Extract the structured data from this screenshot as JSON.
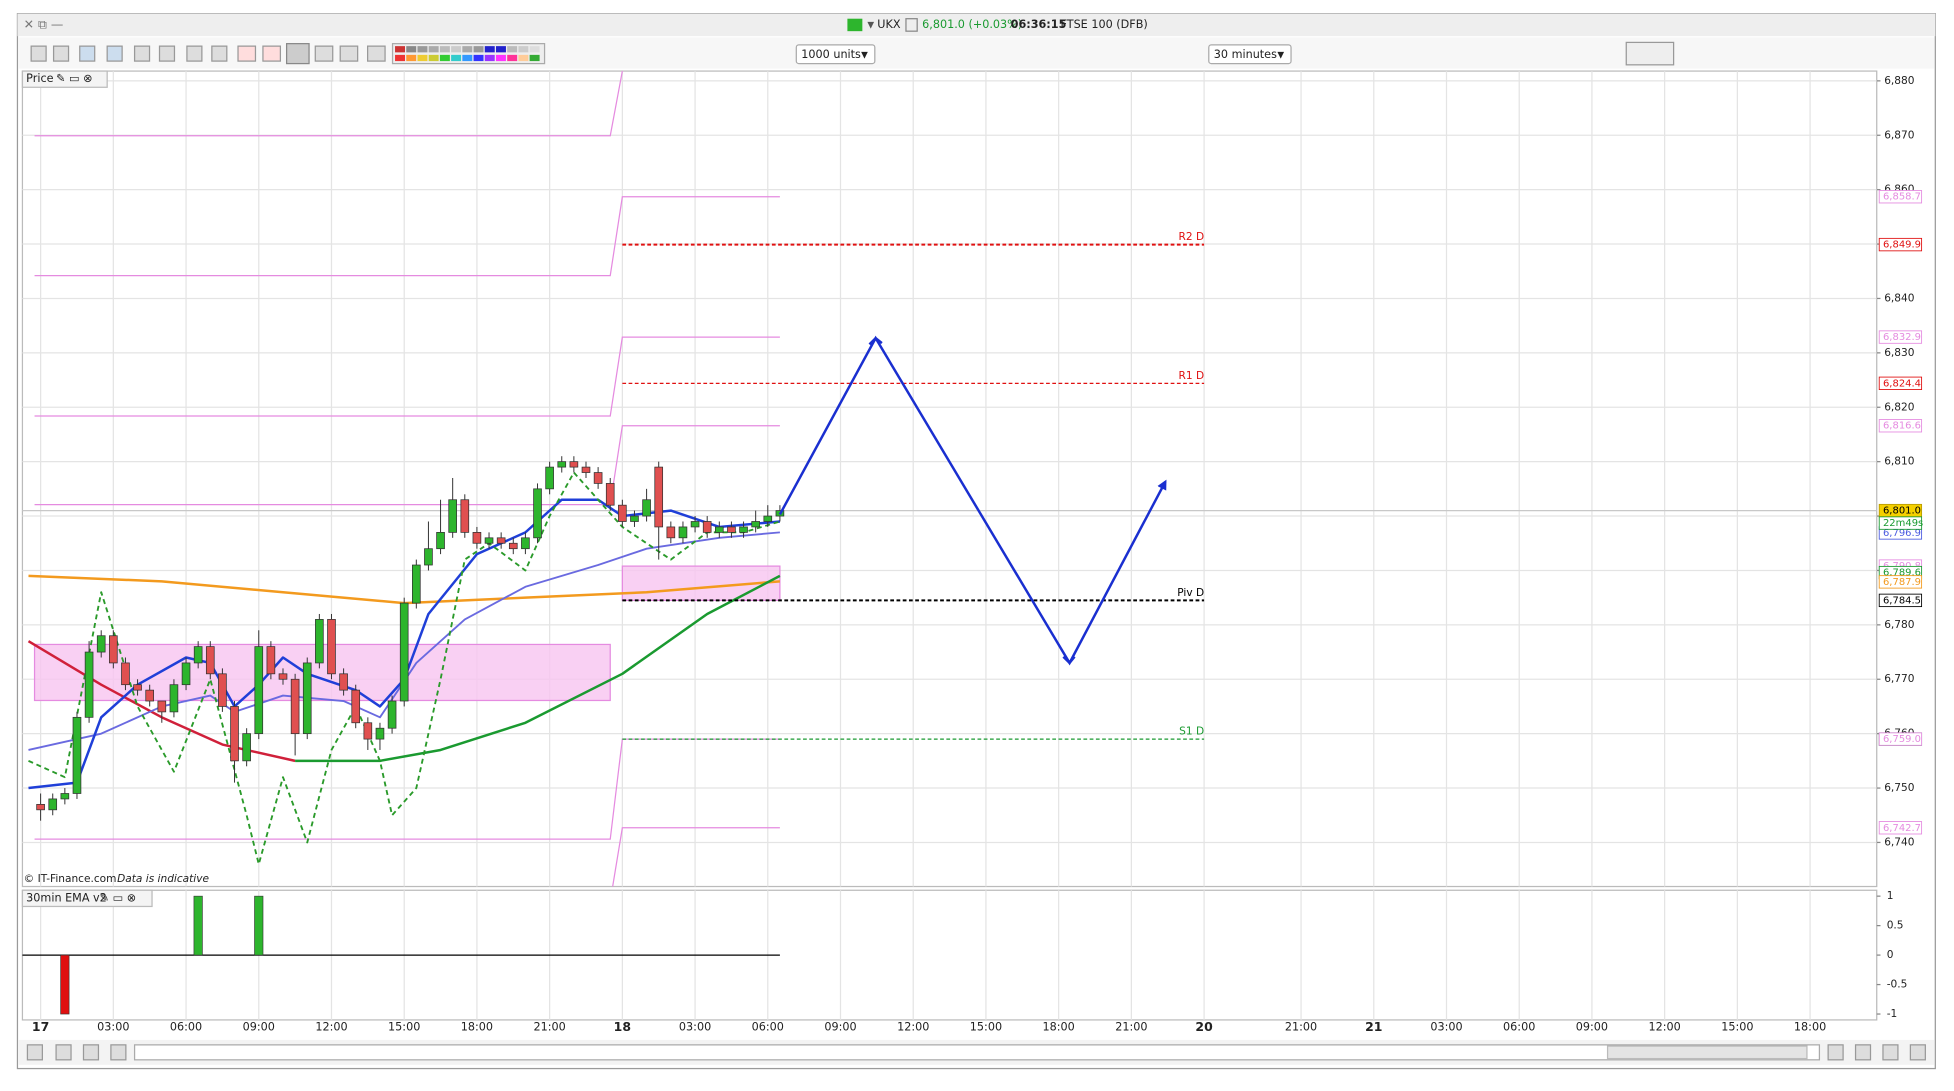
{
  "chart_data": {
    "type": "candlestick",
    "title": "UKX",
    "quote": "6,801.0 (+0.03%)",
    "clock": "06:36:15",
    "instrument": "FTSE 100 (DFB)",
    "units": "1000 units",
    "interval": "30 minutes",
    "panel_label": "Price",
    "credit": "© IT-Finance.com",
    "note": "Data is indicative",
    "xlim": [
      -1.5,
      151.5
    ],
    "ylim": [
      6731.9,
      6881.8
    ],
    "grid": true,
    "xticks": [
      {
        "value": 0,
        "label": "17"
      },
      {
        "value": 6,
        "label": "03:00"
      },
      {
        "value": 12,
        "label": "06:00"
      },
      {
        "value": 18,
        "label": "09:00"
      },
      {
        "value": 24,
        "label": "12:00"
      },
      {
        "value": 30,
        "label": "15:00"
      },
      {
        "value": 36,
        "label": "18:00"
      },
      {
        "value": 42,
        "label": "21:00"
      },
      {
        "value": 48,
        "label": "18"
      },
      {
        "value": 54,
        "label": "03:00"
      },
      {
        "value": 60,
        "label": "06:00"
      },
      {
        "value": 66,
        "label": "09:00"
      },
      {
        "value": 72,
        "label": "12:00"
      },
      {
        "value": 78,
        "label": "15:00"
      },
      {
        "value": 84,
        "label": "18:00"
      },
      {
        "value": 90,
        "label": "21:00"
      },
      {
        "value": 96,
        "label": "20"
      },
      {
        "value": 104,
        "label": "21:00"
      },
      {
        "value": 110,
        "label": "21"
      },
      {
        "value": 116,
        "label": "03:00"
      },
      {
        "value": 122,
        "label": "06:00"
      },
      {
        "value": 128,
        "label": "09:00"
      },
      {
        "value": 134,
        "label": "12:00"
      },
      {
        "value": 140,
        "label": "15:00"
      },
      {
        "value": 146,
        "label": "18:00"
      }
    ],
    "yticks": [
      {
        "value": 6740,
        "label": "6,740"
      },
      {
        "value": 6750,
        "label": "6,750"
      },
      {
        "value": 6760,
        "label": "6,760"
      },
      {
        "value": 6770,
        "label": "6,770"
      },
      {
        "value": 6780,
        "label": "6,780"
      },
      {
        "value": 6790,
        "label": "6,790"
      },
      {
        "value": 6800,
        "label": "6,800"
      },
      {
        "value": 6810,
        "label": "6,810"
      },
      {
        "value": 6820,
        "label": "6,820"
      },
      {
        "value": 6830,
        "label": "6,830"
      },
      {
        "value": 6840,
        "label": "6,840"
      },
      {
        "value": 6850,
        "label": "6,850"
      },
      {
        "value": 6860,
        "label": "6,860"
      },
      {
        "value": 6870,
        "label": "6,870"
      },
      {
        "value": 6880,
        "label": "6,880"
      }
    ],
    "up_color": "#2db52d",
    "down_color": "#e05050",
    "x": [
      0,
      1,
      2,
      3,
      4,
      5,
      6,
      7,
      8,
      9,
      10,
      11,
      12,
      13,
      14,
      15,
      16,
      17,
      18,
      19,
      20,
      21,
      22,
      23,
      24,
      25,
      26,
      27,
      28,
      29,
      30,
      31,
      32,
      33,
      34,
      35,
      36,
      37,
      38,
      39,
      40,
      41,
      42,
      43,
      44,
      45,
      46,
      47,
      48,
      49,
      50,
      51,
      52,
      53,
      54,
      55,
      56,
      57,
      58,
      59,
      60,
      61
    ],
    "open": [
      6747,
      6746,
      6748,
      6749,
      6763,
      6775,
      6778,
      6773,
      6769,
      6768,
      6766,
      6764,
      6769,
      6773,
      6776,
      6771,
      6765,
      6755,
      6760,
      6776,
      6771,
      6770,
      6760,
      6773,
      6781,
      6771,
      6768,
      6762,
      6759,
      6761,
      6766,
      6784,
      6791,
      6794,
      6797,
      6803,
      6797,
      6795,
      6796,
      6795,
      6794,
      6796,
      6805,
      6809,
      6810,
      6809,
      6808,
      6806,
      6802,
      6799,
      6800,
      6809,
      6798,
      6796,
      6798,
      6799,
      6797,
      6798,
      6797,
      6798,
      6799,
      6800
    ],
    "high": [
      6749,
      6749,
      6750,
      6764,
      6777,
      6779,
      6779,
      6774,
      6770,
      6769,
      6766,
      6770,
      6774,
      6777,
      6777,
      6772,
      6766,
      6761,
      6779,
      6777,
      6772,
      6771,
      6774,
      6782,
      6782,
      6772,
      6769,
      6763,
      6762,
      6767,
      6785,
      6792,
      6799,
      6803,
      6807,
      6804,
      6798,
      6797,
      6797,
      6796,
      6797,
      6806,
      6810,
      6811,
      6811,
      6810,
      6809,
      6807,
      6803,
      6801,
      6805,
      6810,
      6799,
      6799,
      6800,
      6800,
      6799,
      6799,
      6799,
      6801,
      6802,
      6802
    ],
    "low": [
      6744,
      6745,
      6747,
      6748,
      6762,
      6774,
      6772,
      6768,
      6767,
      6765,
      6762,
      6763,
      6768,
      6772,
      6770,
      6764,
      6751,
      6754,
      6759,
      6770,
      6769,
      6756,
      6759,
      6772,
      6770,
      6767,
      6761,
      6757,
      6757,
      6760,
      6765,
      6783,
      6790,
      6793,
      6796,
      6796,
      6794,
      6794,
      6794,
      6793,
      6793,
      6795,
      6804,
      6808,
      6808,
      6807,
      6805,
      6801,
      6798,
      6798,
      6799,
      6792,
      6795,
      6795,
      6797,
      6796,
      6796,
      6796,
      6796,
      6797,
      6798,
      6799
    ],
    "close": [
      6746,
      6748,
      6749,
      6763,
      6775,
      6778,
      6773,
      6769,
      6768,
      6766,
      6764,
      6769,
      6773,
      6776,
      6771,
      6765,
      6755,
      6760,
      6776,
      6771,
      6770,
      6760,
      6773,
      6781,
      6771,
      6768,
      6762,
      6759,
      6761,
      6766,
      6784,
      6791,
      6794,
      6797,
      6803,
      6797,
      6795,
      6796,
      6795,
      6794,
      6796,
      6805,
      6809,
      6810,
      6809,
      6808,
      6806,
      6802,
      6799,
      6800,
      6803,
      6798,
      6796,
      6798,
      6799,
      6797,
      6798,
      6797,
      6798,
      6799,
      6800,
      6801
    ],
    "zones": [
      {
        "color": "#f7c4f0",
        "x": [
          -0.5,
          47
        ],
        "low": 6766.1,
        "high": 6776.4
      },
      {
        "color": "#f7c4f0",
        "x": [
          48,
          61
        ],
        "low": 6784.5,
        "high": 6790.8
      }
    ],
    "pink_lines": [
      {
        "color": "#e58be0",
        "x": [
          -0.5,
          47,
          48
        ],
        "values": [
          6869.9,
          6869.9,
          6881.8
        ]
      },
      {
        "color": "#e58be0",
        "x": [
          -0.5,
          47,
          48,
          61
        ],
        "values": [
          6844.2,
          6844.2,
          6858.7,
          6858.7
        ]
      },
      {
        "color": "#e58be0",
        "x": [
          -0.5,
          47,
          48,
          61
        ],
        "values": [
          6818.4,
          6818.4,
          6832.9,
          6832.9
        ]
      },
      {
        "color": "#e58be0",
        "x": [
          -0.5,
          47,
          48,
          61
        ],
        "values": [
          6802.1,
          6802.1,
          6816.6,
          6816.6
        ]
      },
      {
        "color": "#e58be0",
        "x": [
          -0.5,
          47,
          48,
          61
        ],
        "values": [
          6740.6,
          6740.6,
          6759.0,
          6759.0
        ]
      },
      {
        "color": "#e58be0",
        "x": [
          47.2,
          48,
          61
        ],
        "values": [
          6731.9,
          6742.7,
          6742.7
        ]
      }
    ],
    "lines": [
      {
        "color": "#f39a1e",
        "width": 2,
        "dash": false,
        "x": [
          -1,
          10,
          20,
          30,
          40,
          50,
          61
        ],
        "values": [
          6789,
          6788,
          6786,
          6784,
          6785,
          6786,
          6788
        ]
      },
      {
        "color": "#d0203a",
        "width": 2,
        "dash": false,
        "x": [
          -1,
          5,
          10,
          15,
          21
        ],
        "values": [
          6777,
          6769,
          6763,
          6758,
          6755
        ]
      },
      {
        "color": "#1a9a30",
        "width": 2,
        "dash": false,
        "x": [
          21,
          28,
          33,
          40,
          48,
          55,
          61
        ],
        "values": [
          6755,
          6755,
          6757,
          6762,
          6771,
          6782,
          6789
        ]
      },
      {
        "color": "#6a6ae0",
        "width": 1.5,
        "dash": false,
        "x": [
          -1,
          5,
          10,
          14,
          16,
          20,
          25,
          28,
          31,
          35,
          40,
          46,
          50,
          56,
          61
        ],
        "values": [
          6757,
          6760,
          6765,
          6767,
          6764,
          6767,
          6766,
          6763,
          6773,
          6781,
          6787,
          6791,
          6794,
          6796,
          6797
        ]
      },
      {
        "color": "#1f3fd8",
        "width": 2,
        "dash": false,
        "x": [
          -1,
          3,
          5,
          8,
          12,
          14,
          16,
          18,
          20,
          22,
          26,
          28,
          30,
          32,
          36,
          40,
          43,
          46,
          48,
          52,
          56,
          61
        ],
        "values": [
          6750,
          6751,
          6763,
          6769,
          6774,
          6773,
          6765,
          6769,
          6774,
          6771,
          6768,
          6765,
          6770,
          6782,
          6793,
          6797,
          6803,
          6803,
          6800,
          6801,
          6798,
          6799
        ]
      },
      {
        "color": "#2a9a2a",
        "width": 1.5,
        "dash": true,
        "x": [
          -1,
          2,
          5,
          8,
          11,
          14,
          17,
          18,
          20,
          22,
          24,
          26,
          28,
          29,
          31,
          33,
          35,
          37,
          40,
          42,
          44,
          46,
          48,
          52,
          55,
          58,
          61
        ],
        "values": [
          6755,
          6752,
          6786,
          6765,
          6753,
          6770,
          6745,
          6736,
          6752,
          6740,
          6757,
          6765,
          6755,
          6745,
          6750,
          6770,
          6792,
          6795,
          6790,
          6800,
          6808,
          6803,
          6798,
          6792,
          6797,
          6797,
          6799
        ]
      }
    ],
    "projection": {
      "color": "#1a2fd0",
      "x": [
        61,
        68.9,
        84.9,
        92.8
      ],
      "values": [
        6800.3,
        6832.7,
        6773.0,
        6806.3
      ]
    },
    "levels": [
      {
        "name": "R2 D",
        "value": 6849.9,
        "label": "6,849.9",
        "color": "#e01010",
        "x": [
          48,
          96
        ]
      },
      {
        "name": "R1 D",
        "value": 6824.4,
        "label": "6,824.4",
        "color": "#e01010",
        "x": [
          48,
          96
        ]
      },
      {
        "name": "Piv D",
        "value": 6784.5,
        "label": "6,784.5",
        "color": "#000000",
        "x": [
          48,
          96
        ]
      },
      {
        "name": "S1 D",
        "value": 6759.0,
        "label": "6,759.0",
        "color": "#1a9a30",
        "x": [
          48,
          96
        ]
      }
    ],
    "last": {
      "value": 6801.0,
      "label": "6,801.0",
      "countdown": "22m49s"
    },
    "price_tags": [
      {
        "value": 6858.7,
        "label": "6,858.7",
        "color": "#e58be0"
      },
      {
        "value": 6832.9,
        "label": "6,832.9",
        "color": "#e58be0"
      },
      {
        "value": 6816.6,
        "label": "6,816.6",
        "color": "#e58be0"
      },
      {
        "value": 6796.9,
        "label": "6,796.9",
        "color": "#4a5ae0"
      },
      {
        "value": 6790.8,
        "label": "6,790.8",
        "color": "#e58be0"
      },
      {
        "value": 6789.6,
        "label": "6,789.6",
        "color": "#1a9a30"
      },
      {
        "value": 6787.9,
        "label": "6,787.9",
        "color": "#f39a1e"
      },
      {
        "value": 6759.0,
        "label": "6,759.0",
        "color": "#e58be0"
      },
      {
        "value": 6742.7,
        "label": "6,742.7",
        "color": "#e58be0"
      }
    ],
    "indicator": {
      "label": "30min EMA v2",
      "ylim": [
        -1.1,
        1.1
      ],
      "yticks": [
        1,
        0.5,
        0,
        -0.5,
        -1
      ],
      "x": [
        2,
        13,
        18
      ],
      "values": [
        -1,
        1,
        1
      ],
      "up_color": "#2db52d",
      "down_color": "#e01010"
    }
  }
}
